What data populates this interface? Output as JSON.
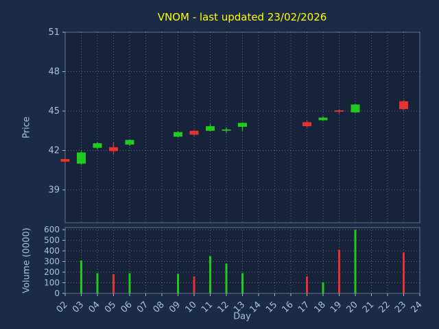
{
  "colors": {
    "figure_bg": "#1c2b45",
    "axes_bg": "#16233a",
    "grid": "#aab8cc",
    "spine": "#7d90aa",
    "tick": "#a4c2e0",
    "title": "#ffff00",
    "up": "#1ecb1e",
    "down": "#e63232"
  },
  "chart_data": {
    "type": "candlestick",
    "title": "VNOM - last updated 23/02/2026",
    "xlabel": "Day",
    "price_ylabel": "Price",
    "volume_ylabel": "Volume (0000)",
    "x_ticks": [
      "02",
      "03",
      "04",
      "05",
      "06",
      "07",
      "08",
      "09",
      "10",
      "11",
      "12",
      "13",
      "14",
      "15",
      "16",
      "17",
      "18",
      "19",
      "20",
      "21",
      "22",
      "23",
      "24"
    ],
    "price_ticks": [
      39,
      42,
      45,
      48,
      51
    ],
    "price_ylim": [
      36.5,
      51
    ],
    "volume_ticks": [
      0,
      100,
      200,
      300,
      400,
      500,
      600
    ],
    "volume_ylim": [
      0,
      620
    ],
    "grid": true,
    "candles": [
      {
        "day": "02",
        "open": 41.35,
        "high": 41.45,
        "low": 41.05,
        "close": 41.15,
        "volume": 0
      },
      {
        "day": "03",
        "open": 41.0,
        "high": 41.95,
        "low": 40.9,
        "close": 41.85,
        "volume": 310
      },
      {
        "day": "04",
        "open": 42.2,
        "high": 42.65,
        "low": 42.1,
        "close": 42.55,
        "volume": 190
      },
      {
        "day": "05",
        "open": 42.25,
        "high": 42.6,
        "low": 41.7,
        "close": 41.95,
        "volume": 180
      },
      {
        "day": "06",
        "open": 42.45,
        "high": 42.85,
        "low": 42.35,
        "close": 42.8,
        "volume": 190
      },
      {
        "day": "09",
        "open": 43.05,
        "high": 43.45,
        "low": 43.0,
        "close": 43.4,
        "volume": 185
      },
      {
        "day": "10",
        "open": 43.5,
        "high": 43.55,
        "low": 43.1,
        "close": 43.2,
        "volume": 160
      },
      {
        "day": "11",
        "open": 43.5,
        "high": 44.0,
        "low": 43.45,
        "close": 43.85,
        "volume": 350
      },
      {
        "day": "12",
        "open": 43.55,
        "high": 43.75,
        "low": 43.35,
        "close": 43.6,
        "volume": 280
      },
      {
        "day": "13",
        "open": 43.8,
        "high": 44.15,
        "low": 43.5,
        "close": 44.1,
        "volume": 190
      },
      {
        "day": "17",
        "open": 44.15,
        "high": 44.3,
        "low": 43.75,
        "close": 43.85,
        "volume": 160
      },
      {
        "day": "18",
        "open": 44.3,
        "high": 44.6,
        "low": 44.25,
        "close": 44.5,
        "volume": 105
      },
      {
        "day": "19",
        "open": 45.05,
        "high": 45.15,
        "low": 44.8,
        "close": 44.95,
        "volume": 410
      },
      {
        "day": "20",
        "open": 44.9,
        "high": 45.55,
        "low": 44.85,
        "close": 45.5,
        "volume": 600
      },
      {
        "day": "23",
        "open": 45.75,
        "high": 45.85,
        "low": 45.05,
        "close": 45.15,
        "volume": 385
      }
    ]
  }
}
